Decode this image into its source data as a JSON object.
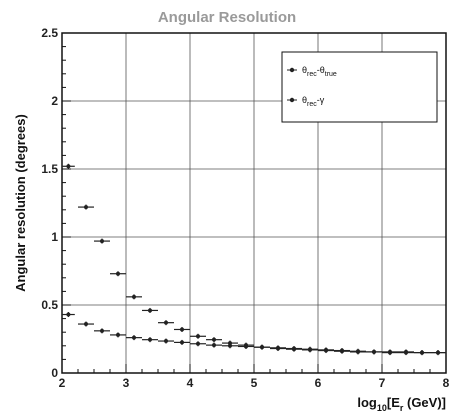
{
  "chart_data": {
    "type": "scatter",
    "title": "Angular Resolution",
    "xlabel": "log",
    "xlabel_sub": "10",
    "xlabel_tail": "[E",
    "xlabel_sub2": "r",
    "xlabel_end": " (GeV)]",
    "ylabel": "Angular resolution (degrees)",
    "xlim": [
      2,
      8
    ],
    "ylim": [
      0,
      2.5
    ],
    "grid": true,
    "legend_position": "top-right",
    "x_ticks": [
      "2",
      "3",
      "4",
      "5",
      "6",
      "7",
      "8"
    ],
    "y_ticks": [
      "0",
      "0.5",
      "1",
      "1.5",
      "2",
      "2.5"
    ],
    "series": [
      {
        "name": "θrec-θtrue",
        "legend_main": "θ",
        "legend_sub1": "rec",
        "legend_mid": "-θ",
        "legend_sub2": "true",
        "color": "#222222",
        "x": [
          2.1,
          2.375,
          2.625,
          2.875,
          3.125,
          3.375,
          3.625,
          3.875,
          4.125,
          4.375,
          4.625,
          4.875,
          5.125,
          5.375,
          5.625,
          5.875,
          6.125,
          6.375,
          6.625,
          6.875,
          7.125,
          7.375,
          7.625,
          7.875
        ],
        "y": [
          0.43,
          0.36,
          0.31,
          0.28,
          0.26,
          0.245,
          0.235,
          0.225,
          0.215,
          0.205,
          0.2,
          0.195,
          0.19,
          0.185,
          0.18,
          0.175,
          0.17,
          0.165,
          0.16,
          0.155,
          0.155,
          0.155,
          0.15,
          0.15
        ],
        "xerr": [
          0.1,
          0.125,
          0.125,
          0.125,
          0.125,
          0.125,
          0.125,
          0.125,
          0.125,
          0.125,
          0.125,
          0.125,
          0.125,
          0.125,
          0.125,
          0.125,
          0.125,
          0.125,
          0.125,
          0.125,
          0.125,
          0.125,
          0.125,
          0.125
        ]
      },
      {
        "name": "θrec-γ",
        "legend_main": "θ",
        "legend_sub1": "rec",
        "legend_mid": "-γ",
        "legend_sub2": "",
        "color": "#222222",
        "x": [
          2.1,
          2.375,
          2.625,
          2.875,
          3.125,
          3.375,
          3.625,
          3.875,
          4.125,
          4.375,
          4.625,
          4.875,
          5.125,
          5.375,
          5.625,
          5.875,
          6.125,
          6.375,
          6.625,
          6.875,
          7.125,
          7.375,
          7.625,
          7.875
        ],
        "y": [
          1.52,
          1.22,
          0.97,
          0.73,
          0.56,
          0.46,
          0.37,
          0.32,
          0.27,
          0.245,
          0.22,
          0.205,
          0.19,
          0.18,
          0.175,
          0.17,
          0.165,
          0.16,
          0.155,
          0.155,
          0.15,
          0.15,
          0.15,
          0.15
        ],
        "xerr": [
          0.1,
          0.125,
          0.125,
          0.125,
          0.125,
          0.125,
          0.125,
          0.125,
          0.125,
          0.125,
          0.125,
          0.125,
          0.125,
          0.125,
          0.125,
          0.125,
          0.125,
          0.125,
          0.125,
          0.125,
          0.125,
          0.125,
          0.125,
          0.125
        ]
      }
    ]
  }
}
